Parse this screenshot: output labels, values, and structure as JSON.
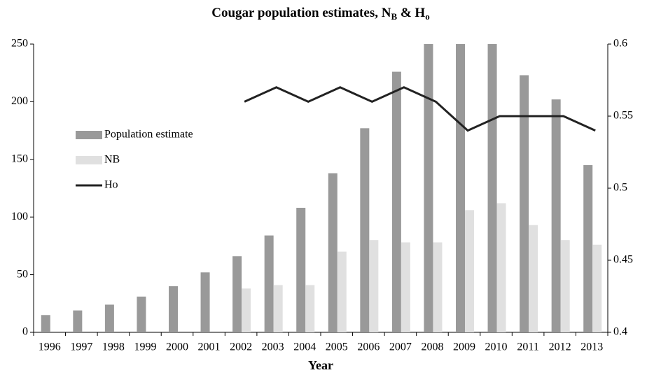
{
  "chart_data": {
    "type": "bar-line",
    "title": [
      "Cougar population estimates, N",
      "B",
      " & H",
      "o"
    ],
    "x_label": "Year",
    "categories": [
      "1996",
      "1997",
      "1998",
      "1999",
      "2000",
      "2001",
      "2002",
      "2003",
      "2004",
      "2005",
      "2006",
      "2007",
      "2008",
      "2009",
      "2010",
      "2011",
      "2012",
      "2013"
    ],
    "series": [
      {
        "name": "Population estimate",
        "kind": "bar",
        "color": "#999999",
        "values": [
          15,
          19,
          24,
          31,
          40,
          52,
          66,
          84,
          108,
          138,
          177,
          226,
          250,
          250,
          250,
          223,
          202,
          145
        ]
      },
      {
        "name": "NB",
        "kind": "bar",
        "color": "#e0e0e0",
        "values": [
          null,
          null,
          null,
          null,
          null,
          null,
          38,
          41,
          41,
          70,
          80,
          78,
          78,
          106,
          112,
          93,
          80,
          76
        ]
      },
      {
        "name": "Ho",
        "kind": "line",
        "axis": "y2",
        "color": "#222222",
        "values": [
          null,
          null,
          null,
          null,
          null,
          null,
          0.56,
          0.57,
          0.56,
          0.57,
          0.56,
          0.57,
          0.56,
          0.54,
          0.55,
          0.55,
          0.55,
          0.54
        ]
      }
    ],
    "ylim": [
      0,
      250
    ],
    "yticks": [
      0,
      50,
      100,
      150,
      200,
      250
    ],
    "y2lim": [
      0.4,
      0.6
    ],
    "y2ticks": [
      0.4,
      0.45,
      0.5,
      0.55,
      0.6
    ],
    "legend": "left"
  }
}
